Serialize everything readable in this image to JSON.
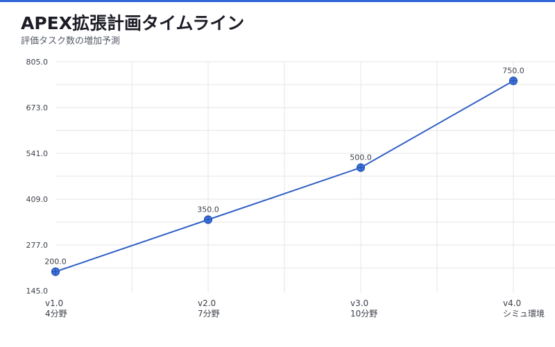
{
  "header": {
    "title": "APEX拡張計画タイムライン",
    "subtitle": "評価タスク数の増加予測"
  },
  "colors": {
    "accent": "#2f66d8",
    "line": "#2f5fc4",
    "grid": "#e6e6ea"
  },
  "chart_data": {
    "type": "line",
    "title": "APEX拡張計画タイムライン",
    "subtitle": "評価タスク数の増加予測",
    "categories": [
      [
        "v1.0",
        "4分野"
      ],
      [
        "v2.0",
        "7分野"
      ],
      [
        "v3.0",
        "10分野"
      ],
      [
        "v4.0",
        "シミュ環境"
      ]
    ],
    "series": [
      {
        "values": [
          200.0,
          350.0,
          500.0,
          750.0
        ]
      }
    ],
    "data_labels": [
      "200.0",
      "350.0",
      "500.0",
      "750.0"
    ],
    "yticks": [
      145.0,
      277.0,
      409.0,
      541.0,
      673.0,
      805.0
    ],
    "ytick_labels": [
      "145.0",
      "277.0",
      "409.0",
      "541.0",
      "673.0",
      "805.0"
    ],
    "ylim": [
      145.0,
      805.0
    ],
    "grid": true,
    "legend": "none"
  }
}
